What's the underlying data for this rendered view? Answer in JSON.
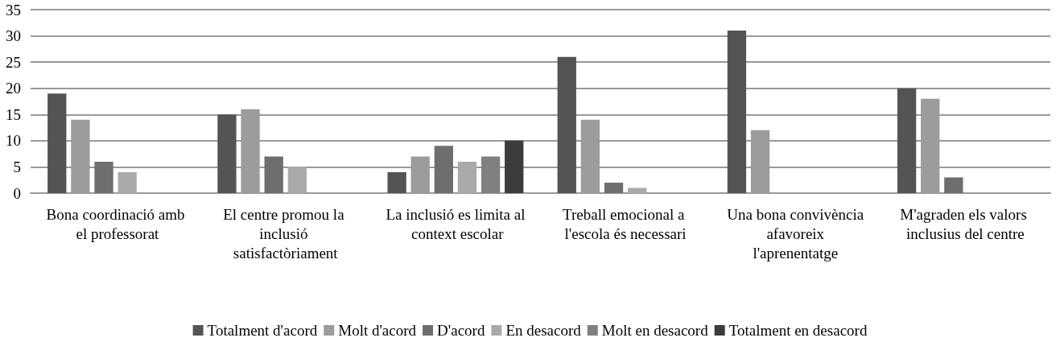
{
  "chart_data": {
    "type": "bar",
    "categories": [
      "Bona coordinació amb el professorat",
      "El centre promou la inclusió satisfactòriament",
      "La inclusió es limita al context escolar",
      "Treball emocional a l'escola és necessari",
      "Una bona convivència afavoreix l'aprenentatge",
      "M'agraden els valors inclusius del centre"
    ],
    "series": [
      {
        "name": "Totalment d'acord",
        "color": "#545454",
        "values": [
          19,
          15,
          4,
          26,
          31,
          20
        ]
      },
      {
        "name": "Molt d'acord",
        "color": "#9c9c9c",
        "values": [
          14,
          16,
          7,
          14,
          12,
          18
        ]
      },
      {
        "name": "D'acord",
        "color": "#6e6e6e",
        "values": [
          6,
          7,
          9,
          2,
          0,
          3
        ]
      },
      {
        "name": "En desacord",
        "color": "#aaaaaa",
        "values": [
          4,
          5,
          6,
          1,
          0,
          0
        ]
      },
      {
        "name": "Molt en desacord",
        "color": "#808080",
        "values": [
          0,
          0,
          7,
          0,
          0,
          0
        ]
      },
      {
        "name": "Totalment en desacord",
        "color": "#3c3c3c",
        "values": [
          0,
          0,
          10,
          0,
          0,
          0
        ]
      }
    ],
    "ylim": [
      0,
      35
    ],
    "yticks": [
      0,
      5,
      10,
      15,
      20,
      25,
      30,
      35
    ],
    "grid": "y",
    "legend": "bottom"
  }
}
